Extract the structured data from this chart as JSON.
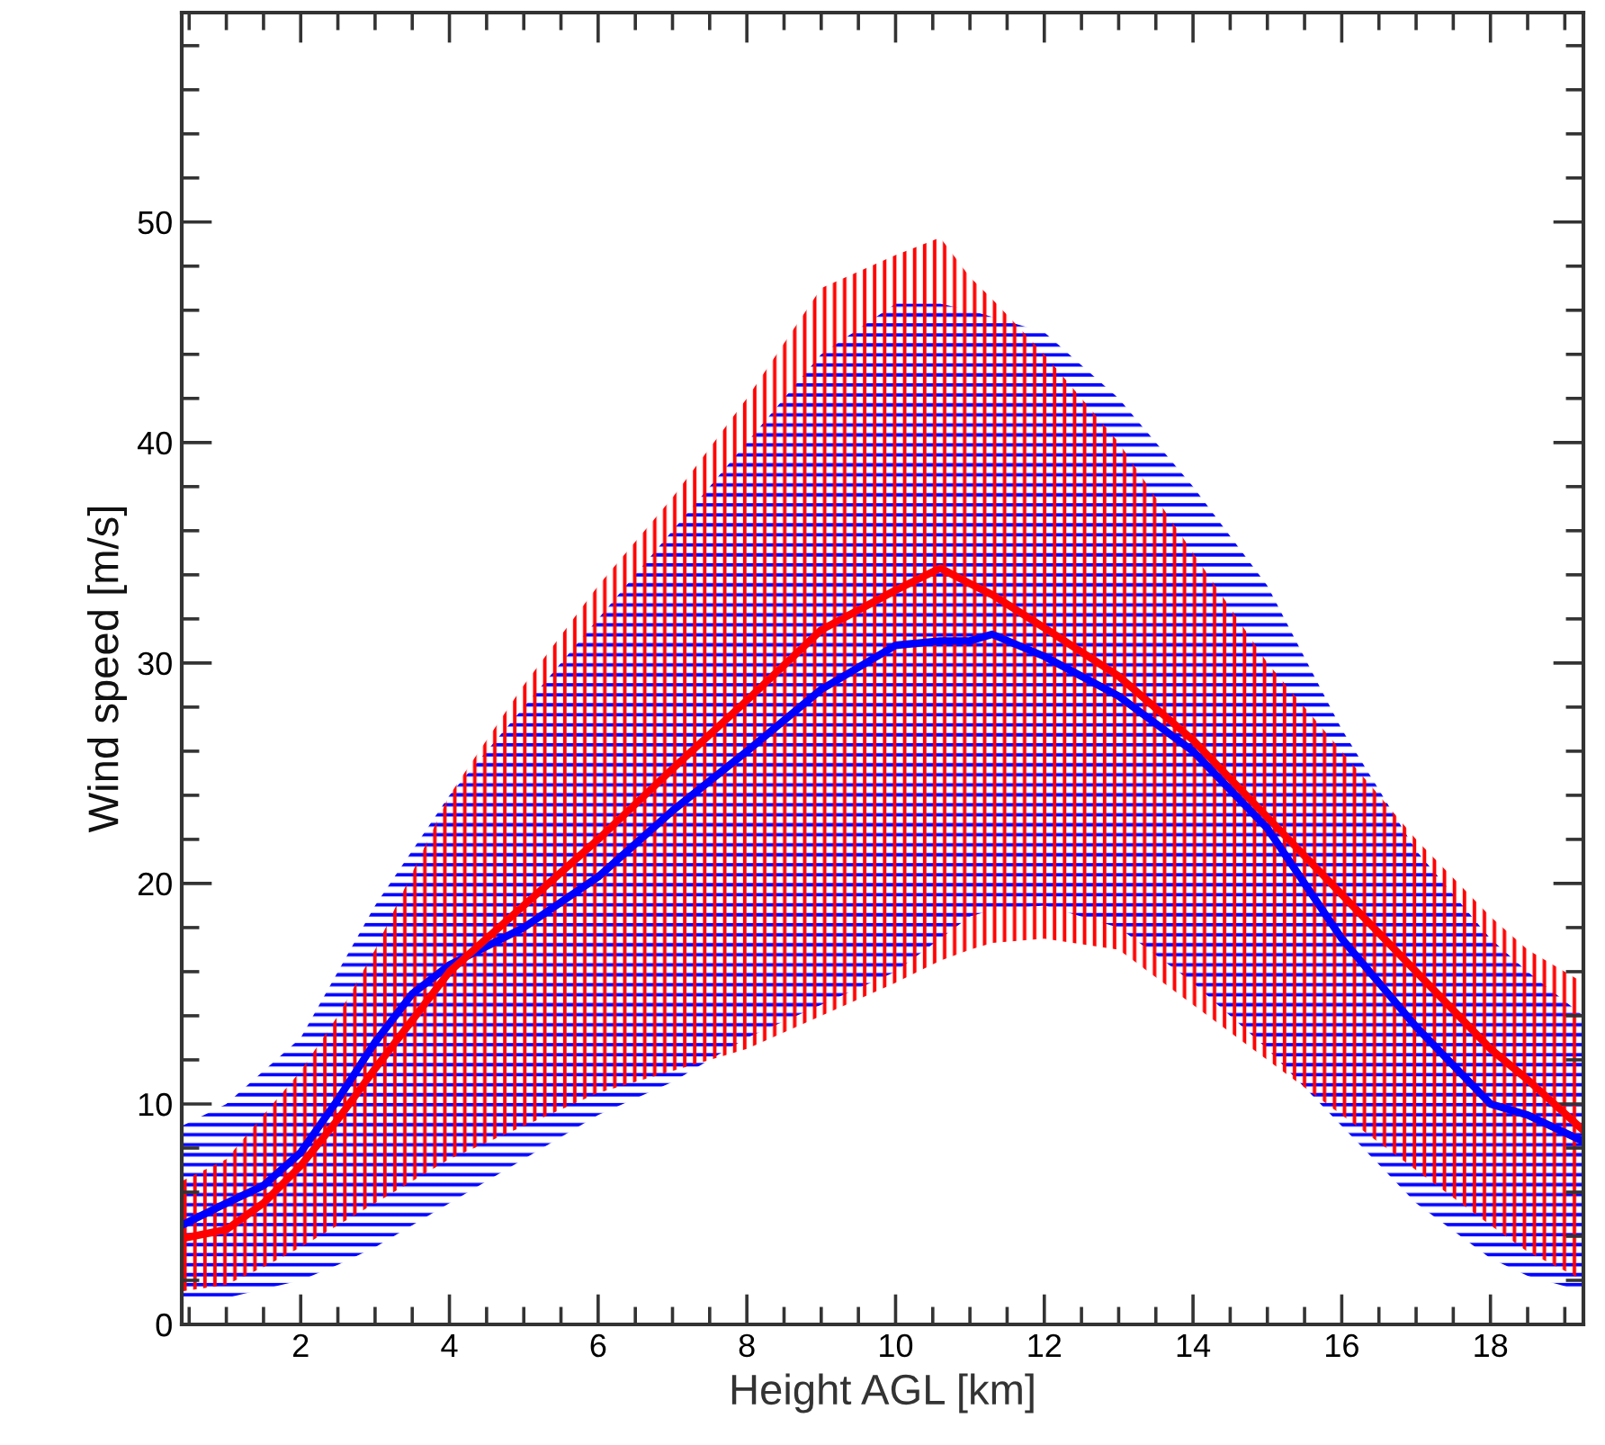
{
  "chart_data": {
    "type": "line",
    "xlabel": "Height AGL [km]",
    "ylabel": "Wind speed [m/s]",
    "xlim": [
      0.4,
      19.25
    ],
    "ylim": [
      0,
      59.5
    ],
    "xticks": [
      2,
      4,
      6,
      8,
      10,
      12,
      14,
      16,
      18
    ],
    "yticks": [
      0,
      10,
      20,
      30,
      40,
      50
    ],
    "grid": false,
    "marker": "none",
    "line_style": "solid",
    "series": [
      {
        "color": "#0000ff",
        "x": [
          0.4,
          1,
          1.5,
          2,
          2.5,
          3,
          3.5,
          4,
          5,
          6,
          7,
          8,
          9,
          10,
          10.6,
          11,
          11.3,
          12,
          13,
          14,
          15,
          16,
          17,
          18,
          18.5,
          19.25
        ],
        "values": [
          4.5,
          5.5,
          6.3,
          7.8,
          10.2,
          12.8,
          15.0,
          16.3,
          18.0,
          20.3,
          23.3,
          26.0,
          28.8,
          30.8,
          31.0,
          31.0,
          31.3,
          30.3,
          28.5,
          26.0,
          22.5,
          17.5,
          13.5,
          10.0,
          9.5,
          8.3
        ],
        "lower": [
          1.0,
          1.2,
          1.6,
          2.0,
          2.7,
          3.5,
          4.5,
          5.5,
          7.5,
          9.5,
          11,
          13,
          14.5,
          16,
          17.5,
          18.5,
          18.8,
          19,
          18,
          15.5,
          12.5,
          9,
          5.5,
          3,
          2.2,
          1.5
        ],
        "upper": [
          9,
          10,
          11.5,
          13,
          16,
          19,
          21.5,
          24,
          28,
          32,
          36,
          40,
          44,
          46.3,
          46.3,
          46,
          45.7,
          45,
          42,
          38,
          33.5,
          27,
          21.5,
          17.5,
          16,
          14
        ]
      },
      {
        "color": "#ff0000",
        "x": [
          0.4,
          1,
          1.5,
          2,
          2.5,
          3,
          3.5,
          4,
          5,
          6,
          7,
          8,
          9,
          10,
          10.6,
          11,
          11.3,
          12,
          13,
          14,
          15,
          16,
          17,
          18,
          18.5,
          19.25
        ],
        "values": [
          3.9,
          4.3,
          5.5,
          7.2,
          9.3,
          11.6,
          13.8,
          16.0,
          19.0,
          22.0,
          25.2,
          28.3,
          31.5,
          33.3,
          34.3,
          33.6,
          33.1,
          31.6,
          29.4,
          26.5,
          23.0,
          19.5,
          16.0,
          12.5,
          11.1,
          8.8
        ],
        "lower": [
          1.5,
          1.8,
          2.6,
          3.5,
          4.5,
          5.5,
          6.5,
          7.5,
          9.0,
          10.5,
          11.5,
          12.5,
          14.0,
          15.5,
          16.5,
          17,
          17.3,
          17.5,
          17,
          14.5,
          12,
          9.5,
          7,
          4.5,
          3.3,
          2
        ],
        "upper": [
          6.5,
          7.5,
          9.5,
          11.5,
          14,
          17,
          20.5,
          24,
          29,
          33.5,
          37.5,
          42,
          47,
          48.5,
          49.3,
          47.5,
          46.5,
          44,
          40,
          35,
          30,
          26,
          22,
          18.5,
          17,
          15.5
        ]
      }
    ]
  }
}
